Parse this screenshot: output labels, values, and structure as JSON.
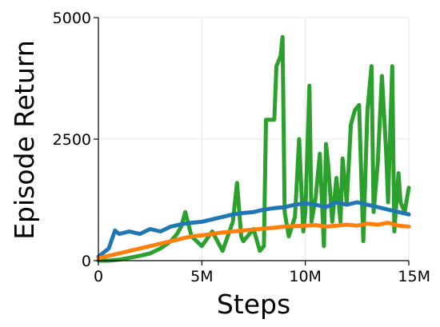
{
  "chart_data": {
    "type": "line",
    "title": "",
    "xlabel": "Steps",
    "ylabel": "Episode Return",
    "xlim": [
      0,
      15000000
    ],
    "ylim": [
      0,
      5000
    ],
    "x_ticks": [
      0,
      5000000,
      10000000,
      15000000
    ],
    "x_tick_labels": [
      "0",
      "5M",
      "10M",
      "15M"
    ],
    "y_ticks": [
      0,
      2500,
      5000
    ],
    "y_tick_labels": [
      "0",
      "2500",
      "5000"
    ],
    "grid": true,
    "legend": "none",
    "series": [
      {
        "color": "#2ca02c",
        "x": [
          0,
          500000,
          1000000,
          1500000,
          2000000,
          2500000,
          3000000,
          3500000,
          3800000,
          4000000,
          4200000,
          4500000,
          5000000,
          5500000,
          6000000,
          6500000,
          6700000,
          6900000,
          7000000,
          7500000,
          7800000,
          8000000,
          8100000,
          8300000,
          8500000,
          8600000,
          8800000,
          8900000,
          9000000,
          9200000,
          9500000,
          9700000,
          9900000,
          10000000,
          10200000,
          10300000,
          10500000,
          10700000,
          10900000,
          11000000,
          11100000,
          11300000,
          11500000,
          11700000,
          11800000,
          12000000,
          12200000,
          12400000,
          12600000,
          12800000,
          13000000,
          13200000,
          13300000,
          13500000,
          13700000,
          13900000,
          14000000,
          14200000,
          14300000,
          14500000,
          14600000,
          14800000,
          15000000
        ],
        "values": [
          0,
          0,
          20,
          60,
          100,
          150,
          250,
          400,
          550,
          700,
          1000,
          500,
          300,
          600,
          200,
          800,
          1600,
          500,
          400,
          650,
          200,
          300,
          2900,
          2900,
          2900,
          4000,
          4200,
          4600,
          1000,
          500,
          900,
          2500,
          600,
          1000,
          3600,
          800,
          1300,
          2200,
          300,
          2400,
          2000,
          800,
          1700,
          800,
          2100,
          1200,
          2800,
          3100,
          3200,
          400,
          3100,
          4000,
          1000,
          2000,
          3800,
          2300,
          1200,
          4000,
          600,
          1800,
          1200,
          1000,
          1500
        ]
      },
      {
        "color": "#1f77b4",
        "x": [
          0,
          500000,
          800000,
          1000000,
          1500000,
          2000000,
          2500000,
          3000000,
          3500000,
          4000000,
          4500000,
          5000000,
          5500000,
          6000000,
          6500000,
          7000000,
          7500000,
          8000000,
          8500000,
          9000000,
          9500000,
          10000000,
          10500000,
          11000000,
          11500000,
          12000000,
          12500000,
          13000000,
          13500000,
          14000000,
          14500000,
          15000000
        ],
        "values": [
          80,
          250,
          620,
          550,
          600,
          550,
          650,
          600,
          700,
          750,
          780,
          800,
          850,
          900,
          950,
          980,
          1000,
          1050,
          1080,
          1100,
          1150,
          1180,
          1150,
          1100,
          1200,
          1150,
          1200,
          1150,
          1100,
          1050,
          1000,
          950
        ]
      },
      {
        "color": "#ff7f0e",
        "x": [
          0,
          500000,
          1000000,
          1500000,
          2000000,
          2500000,
          3000000,
          3500000,
          4000000,
          4500000,
          5000000,
          5500000,
          6000000,
          6500000,
          7000000,
          7500000,
          8000000,
          8500000,
          9000000,
          9500000,
          10000000,
          10500000,
          11000000,
          11500000,
          12000000,
          12500000,
          13000000,
          13500000,
          14000000,
          14500000,
          15000000
        ],
        "values": [
          50,
          100,
          150,
          200,
          250,
          300,
          350,
          400,
          450,
          500,
          520,
          550,
          580,
          600,
          620,
          640,
          660,
          680,
          700,
          710,
          720,
          730,
          700,
          720,
          740,
          720,
          760,
          740,
          780,
          720,
          700
        ]
      }
    ]
  }
}
